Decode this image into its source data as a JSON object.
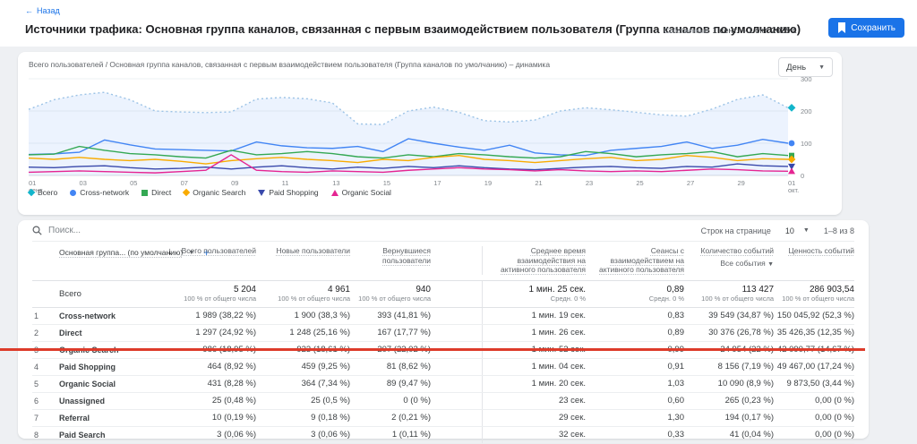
{
  "header": {
    "back_label": "Назад",
    "title": "Источники трафика: Основная группа каналов, связанная с первым взаимодействием пользователя (Группа каналов по умолчанию)",
    "range_type": "Собственный",
    "date_range": "1 сент. – 1 окт. 2025 г.",
    "save_label": "Сохранить"
  },
  "icons": {
    "back": "←",
    "caret_down": "▼",
    "plus": "+",
    "sort_desc": "↓"
  },
  "chart": {
    "title": "Всего пользователей / Основная группа каналов, связанная с первым взаимодействием пользователя (Группа каналов по умолчанию) – динамика",
    "granularity_label": "День"
  },
  "chart_data": {
    "type": "line",
    "title": "Всего пользователей – динамика",
    "x": [
      "01 сент.",
      "02",
      "03",
      "04",
      "05",
      "06",
      "07",
      "08",
      "09",
      "10",
      "11",
      "12",
      "13",
      "14",
      "15",
      "16",
      "17",
      "18",
      "19",
      "20",
      "21",
      "22",
      "23",
      "24",
      "25",
      "26",
      "27",
      "28",
      "29",
      "30",
      "01 окт."
    ],
    "ylim": [
      0,
      300
    ],
    "y_ticks": [
      0,
      100,
      200,
      300
    ],
    "grid": true,
    "legend_position": "bottom",
    "series": [
      {
        "name": "Всего",
        "color": "#12b5cb",
        "line_color": "#9cc3e6",
        "style": "dotted-area",
        "marker": "diamond",
        "values": [
          205,
          235,
          250,
          258,
          235,
          200,
          197,
          195,
          197,
          237,
          242,
          238,
          225,
          160,
          158,
          200,
          212,
          196,
          170,
          166,
          172,
          200,
          210,
          204,
          196,
          188,
          184,
          206,
          236,
          250,
          210
        ]
      },
      {
        "name": "Cross-network",
        "color": "#4285f4",
        "style": "solid",
        "marker": "circle",
        "values": [
          65,
          67,
          72,
          110,
          95,
          82,
          80,
          78,
          76,
          104,
          92,
          86,
          84,
          90,
          74,
          114,
          100,
          88,
          78,
          94,
          70,
          64,
          62,
          78,
          84,
          90,
          104,
          84,
          94,
          112,
          100
        ]
      },
      {
        "name": "Direct",
        "color": "#34a853",
        "style": "solid",
        "marker": "square",
        "values": [
          64,
          66,
          90,
          78,
          68,
          64,
          58,
          54,
          78,
          64,
          68,
          74,
          68,
          58,
          54,
          64,
          58,
          68,
          64,
          58,
          54,
          58,
          74,
          68,
          58,
          64,
          68,
          74,
          58,
          68,
          62
        ]
      },
      {
        "name": "Organic Search",
        "color": "#f9ab00",
        "style": "solid",
        "marker": "diamond",
        "values": [
          54,
          50,
          56,
          50,
          46,
          50,
          44,
          36,
          46,
          52,
          56,
          50,
          46,
          40,
          50,
          46,
          56,
          62,
          50,
          46,
          40,
          46,
          52,
          56,
          46,
          50,
          62,
          56,
          46,
          52,
          50
        ]
      },
      {
        "name": "Paid Shopping",
        "color": "#3949ab",
        "style": "solid",
        "marker": "triangle-down",
        "values": [
          26,
          24,
          28,
          30,
          24,
          20,
          22,
          26,
          20,
          26,
          30,
          24,
          20,
          26,
          22,
          28,
          24,
          30,
          24,
          20,
          18,
          22,
          26,
          28,
          24,
          22,
          28,
          26,
          36,
          30,
          28
        ]
      },
      {
        "name": "Organic Social",
        "color": "#e52592",
        "style": "solid",
        "marker": "triangle-up",
        "values": [
          10,
          12,
          14,
          12,
          10,
          8,
          12,
          16,
          64,
          16,
          12,
          10,
          14,
          12,
          10,
          16,
          20,
          24,
          20,
          18,
          14,
          18,
          14,
          12,
          14,
          12,
          16,
          20,
          18,
          14,
          13
        ]
      }
    ]
  },
  "table": {
    "search_placeholder": "Поиск...",
    "rows_per_page_label": "Строк на странице",
    "rows_per_page_value": "10",
    "pagination": "1–8 из 8",
    "dimension_header": "Основная группа... (по умолчанию)",
    "columns": [
      "Всего пользователей",
      "Новые пользователи",
      "Вернувшиеся пользователи",
      "Среднее время взаимодействия на активного пользователя",
      "Сеансы с взаимодействием на активного пользователя",
      "Количество событий",
      "Ценность событий"
    ],
    "event_filter": "Все события",
    "totals": {
      "label": "Всего",
      "values": [
        "5 204",
        "4 961",
        "940",
        "1 мин. 25 сек.",
        "0,89",
        "113 427",
        "286 903,54"
      ],
      "subs": [
        "100 % от общего числа",
        "100 % от общего числа",
        "100 % от общего числа",
        "Средн. 0 %",
        "Средн. 0 %",
        "100 % от общего числа",
        "100 % от общего числа"
      ]
    },
    "rows": [
      {
        "num": "1",
        "name": "Cross-network",
        "cells": [
          "1 989 (38,22 %)",
          "1 900 (38,3 %)",
          "393 (41,81 %)",
          "1 мин. 19 сек.",
          "0,83",
          "39 549 (34,87 %)",
          "150 045,92 (52,3 %)"
        ]
      },
      {
        "num": "2",
        "name": "Direct",
        "cells": [
          "1 297 (24,92 %)",
          "1 248 (25,16 %)",
          "167 (17,77 %)",
          "1 мин. 26 сек.",
          "0,89",
          "30 376 (26,78 %)",
          "35 426,35 (12,35 %)"
        ]
      },
      {
        "num": "3",
        "name": "Organic Search",
        "cells": [
          "986 (18,95 %)",
          "923 (18,61 %)",
          "207 (22,02 %)",
          "1 мин. 52 сек.",
          "0,99",
          "24 954 (22 %)",
          "42 090,77 (14,67 %)"
        ]
      },
      {
        "num": "4",
        "name": "Paid Shopping",
        "cells": [
          "464 (8,92 %)",
          "459 (9,25 %)",
          "81 (8,62 %)",
          "1 мин. 04 сек.",
          "0,91",
          "8 156 (7,19 %)",
          "49 467,00 (17,24 %)"
        ]
      },
      {
        "num": "5",
        "name": "Organic Social",
        "cells": [
          "431 (8,28 %)",
          "364 (7,34 %)",
          "89 (9,47 %)",
          "1 мин. 20 сек.",
          "1,03",
          "10 090 (8,9 %)",
          "9 873,50 (3,44 %)"
        ]
      },
      {
        "num": "6",
        "name": "Unassigned",
        "cells": [
          "25 (0,48 %)",
          "25 (0,5 %)",
          "0 (0 %)",
          "23 сек.",
          "0,60",
          "265 (0,23 %)",
          "0,00 (0 %)"
        ]
      },
      {
        "num": "7",
        "name": "Referral",
        "cells": [
          "10 (0,19 %)",
          "9 (0,18 %)",
          "2 (0,21 %)",
          "29 сек.",
          "1,30",
          "194 (0,17 %)",
          "0,00 (0 %)"
        ]
      },
      {
        "num": "8",
        "name": "Paid Search",
        "cells": [
          "3 (0,06 %)",
          "3 (0,06 %)",
          "1 (0,11 %)",
          "32 сек.",
          "0,33",
          "41 (0,04 %)",
          "0,00 (0 %)"
        ]
      }
    ]
  },
  "annotation": {
    "color": "#dd3b2a"
  },
  "colors": {
    "accent_blue": "#1a73e8",
    "area_fill": "rgba(66,133,244,0.10)"
  }
}
